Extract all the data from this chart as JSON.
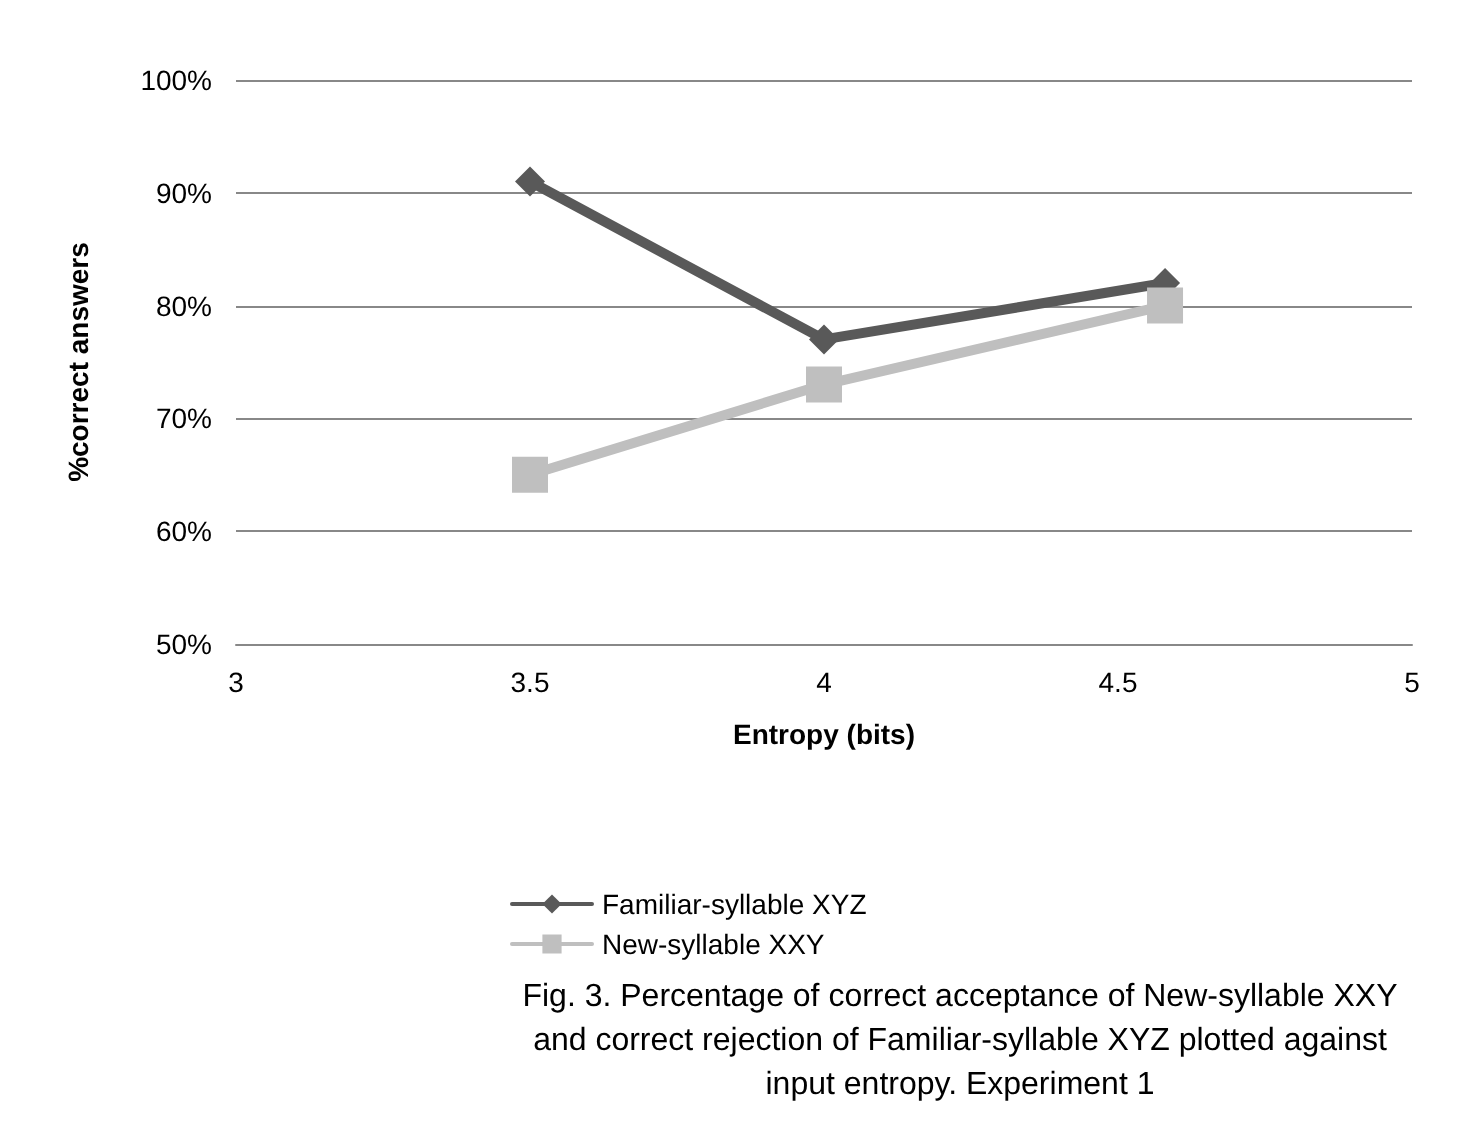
{
  "chart_data": {
    "type": "line",
    "xlabel": "Entropy (bits)",
    "ylabel": "%correct answers",
    "x": [
      3.5,
      4,
      4.58
    ],
    "series": [
      {
        "name": "Familiar-syllable XYZ",
        "color": "#595959",
        "values": [
          91,
          77,
          82
        ],
        "marker": "diamond"
      },
      {
        "name": "New-syllable XXY",
        "color": "#bfbfbf",
        "values": [
          65,
          73,
          80
        ],
        "marker": "square"
      }
    ],
    "xlim": [
      3,
      5
    ],
    "xticks": [
      3,
      3.5,
      4,
      4.5,
      5
    ],
    "ylim": [
      50,
      100
    ],
    "yticks": [
      {
        "value": 50,
        "label": "50%"
      },
      {
        "value": 60,
        "label": "60%"
      },
      {
        "value": 70,
        "label": "70%"
      },
      {
        "value": 80,
        "label": "80%"
      },
      {
        "value": 90,
        "label": "90%"
      },
      {
        "value": 100,
        "label": "100%"
      }
    ],
    "grid": "y",
    "legend": "bottom",
    "line_style": "solid",
    "annotations": [
      "Fig. 3. Percentage of correct acceptance of New-syllable XXY and correct rejection of Familiar-syllable XYZ plotted against input entropy. Experiment 1"
    ]
  }
}
